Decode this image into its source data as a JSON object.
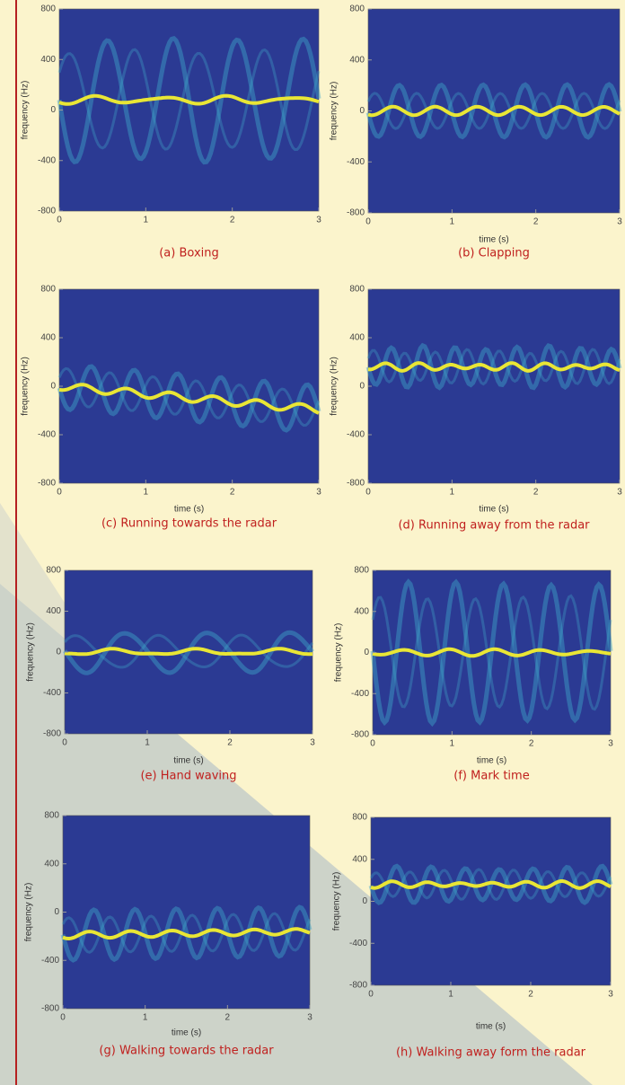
{
  "panels": [
    {
      "caption": "(a) Boxing",
      "y_label": "frequency (Hz)",
      "x_ticks": [
        0,
        1,
        2,
        3
      ],
      "y_ticks": [
        800,
        400,
        0,
        -400,
        -800
      ]
    },
    {
      "caption": "(b) Clapping",
      "x_label": "time (s)",
      "y_label": "frequency (Hz)",
      "x_ticks": [
        0,
        1,
        2,
        3
      ],
      "y_ticks": [
        800,
        400,
        0,
        -400,
        -800
      ]
    },
    {
      "caption": "(c) Running towards the radar",
      "x_label": "time (s)",
      "y_label": "frequency (Hz)",
      "x_ticks": [
        0,
        1,
        2,
        3
      ],
      "y_ticks": [
        800,
        400,
        0,
        -400,
        -800
      ]
    },
    {
      "caption": "(d) Running away from the radar",
      "x_label": "time (s)",
      "y_label": "frequency (Hz)",
      "x_ticks": [
        0,
        1,
        2,
        3
      ],
      "y_ticks": [
        800,
        400,
        0,
        -400,
        -800
      ]
    },
    {
      "caption": "(e) Hand waving",
      "x_label": "time (s)",
      "y_label": "frequency (Hz)",
      "x_ticks": [
        0,
        1,
        2,
        3
      ],
      "y_ticks": [
        800,
        400,
        0,
        -400,
        -800
      ]
    },
    {
      "caption": "(f) Mark time",
      "x_label": "time (s)",
      "y_label": "frequency (Hz)",
      "x_ticks": [
        0,
        1,
        2,
        3
      ],
      "y_ticks": [
        800,
        400,
        0,
        -400,
        -800
      ]
    },
    {
      "caption": "(g) Walking towards the radar",
      "x_label": "time (s)",
      "y_label": "frequency (Hz)",
      "x_ticks": [
        0,
        1,
        2,
        3
      ],
      "y_ticks": [
        800,
        400,
        0,
        -400,
        -800
      ]
    },
    {
      "caption": "(h) Walking away form the radar",
      "x_label": "time (s)",
      "y_label": "frequency (Hz)",
      "x_ticks": [
        0,
        1,
        2,
        3
      ],
      "y_ticks": [
        800,
        400,
        0,
        -400,
        -800
      ]
    }
  ]
}
